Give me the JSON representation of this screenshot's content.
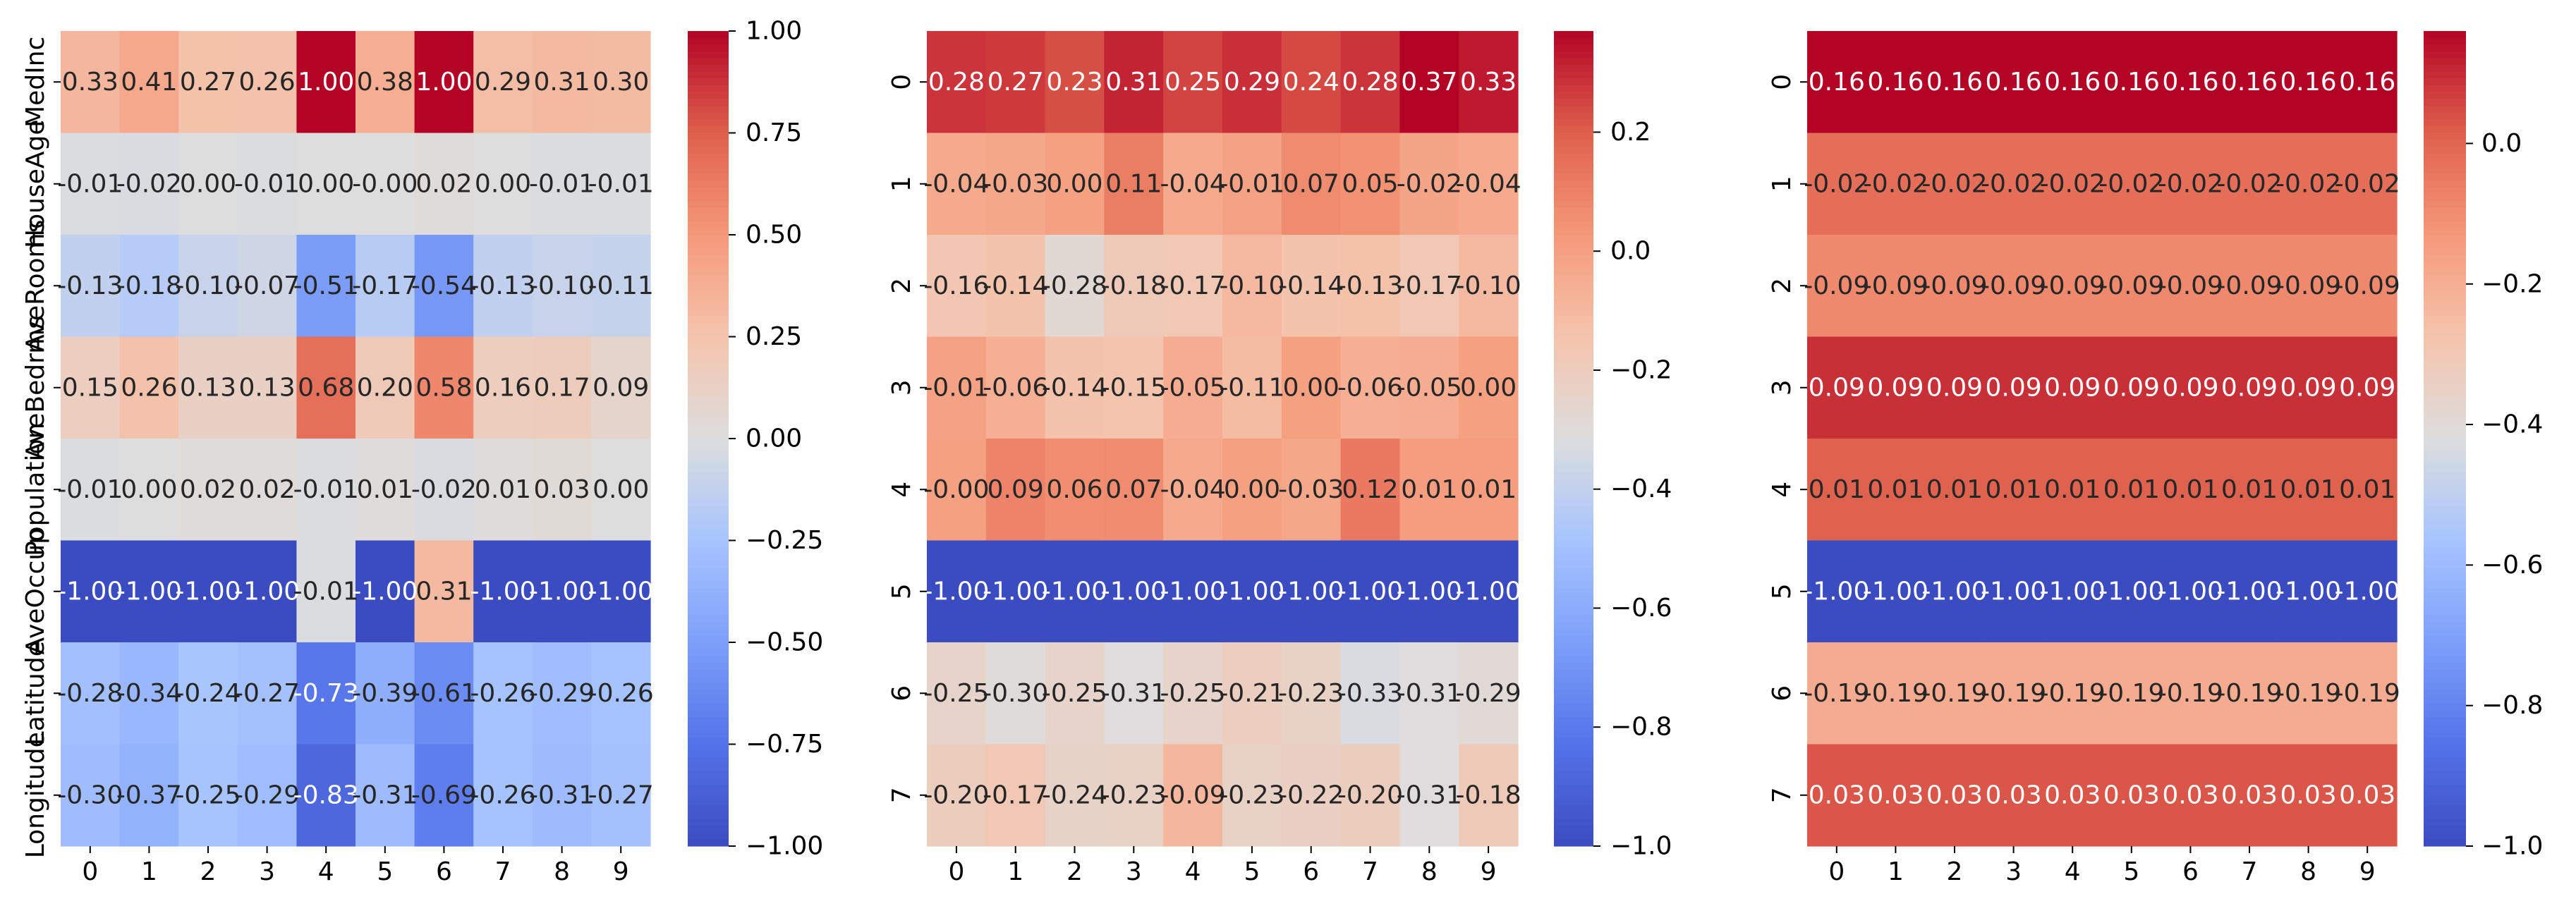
{
  "chart_data": [
    {
      "type": "heatmap",
      "x_tick_labels": [
        "0",
        "1",
        "2",
        "3",
        "4",
        "5",
        "6",
        "7",
        "8",
        "9"
      ],
      "y_tick_labels": [
        "MedInc",
        "HouseAge",
        "AveRooms",
        "AveBedrms",
        "Population",
        "AveOccup",
        "Latitude",
        "Longitude"
      ],
      "values": [
        [
          0.33,
          0.41,
          0.27,
          0.26,
          1.0,
          0.38,
          1.0,
          0.29,
          0.31,
          0.3
        ],
        [
          -0.01,
          -0.02,
          0.0,
          -0.01,
          0.0,
          -0.0,
          0.02,
          0.0,
          -0.01,
          -0.01
        ],
        [
          -0.13,
          -0.18,
          -0.1,
          -0.07,
          -0.51,
          -0.17,
          -0.54,
          -0.13,
          -0.1,
          -0.11
        ],
        [
          0.15,
          0.26,
          0.13,
          0.13,
          0.68,
          0.2,
          0.58,
          0.16,
          0.17,
          0.09
        ],
        [
          -0.01,
          0.0,
          0.02,
          0.02,
          -0.01,
          0.01,
          -0.02,
          0.01,
          0.03,
          0.0
        ],
        [
          -1.0,
          -1.0,
          -1.0,
          -1.0,
          -0.01,
          -1.0,
          0.31,
          -1.0,
          -1.0,
          -1.0
        ],
        [
          -0.28,
          -0.34,
          -0.24,
          -0.27,
          -0.73,
          -0.39,
          -0.61,
          -0.26,
          -0.29,
          -0.26
        ],
        [
          -0.3,
          -0.37,
          -0.25,
          -0.29,
          -0.83,
          -0.31,
          -0.69,
          -0.26,
          -0.31,
          -0.27
        ]
      ],
      "labels": [
        [
          "0.33",
          "0.41",
          "0.27",
          "0.26",
          "1.00",
          "0.38",
          "1.00",
          "0.29",
          "0.31",
          "0.30"
        ],
        [
          "-0.01",
          "-0.02",
          "0.00",
          "-0.01",
          "0.00",
          "-0.00",
          "0.02",
          "0.00",
          "-0.01",
          "-0.01"
        ],
        [
          "-0.13",
          "-0.18",
          "-0.10",
          "-0.07",
          "-0.51",
          "-0.17",
          "-0.54",
          "-0.13",
          "-0.10",
          "-0.11"
        ],
        [
          "0.15",
          "0.26",
          "0.13",
          "0.13",
          "0.68",
          "0.20",
          "0.58",
          "0.16",
          "0.17",
          "0.09"
        ],
        [
          "-0.01",
          "0.00",
          "0.02",
          "0.02",
          "-0.01",
          "0.01",
          "-0.02",
          "0.01",
          "0.03",
          "0.00"
        ],
        [
          "-1.00",
          "-1.00",
          "-1.00",
          "-1.00",
          "-0.01",
          "-1.00",
          "0.31",
          "-1.00",
          "-1.00",
          "-1.00"
        ],
        [
          "-0.28",
          "-0.34",
          "-0.24",
          "-0.27",
          "-0.73",
          "-0.39",
          "-0.61",
          "-0.26",
          "-0.29",
          "-0.26"
        ],
        [
          "-0.30",
          "-0.37",
          "-0.25",
          "-0.29",
          "-0.83",
          "-0.31",
          "-0.69",
          "-0.26",
          "-0.31",
          "-0.27"
        ]
      ],
      "color_range": [
        -1.0,
        1.0
      ],
      "colorbar_ticks": [
        1.0,
        0.75,
        0.5,
        0.25,
        0.0,
        -0.25,
        -0.5,
        -0.75,
        -1.0
      ],
      "colorbar_tick_labels": [
        "1.00",
        "0.75",
        "0.50",
        "0.25",
        "0.00",
        "−0.25",
        "−0.50",
        "−0.75",
        "−1.00"
      ],
      "colormap": "coolwarm",
      "y_labels_rotated": true
    },
    {
      "type": "heatmap",
      "x_tick_labels": [
        "0",
        "1",
        "2",
        "3",
        "4",
        "5",
        "6",
        "7",
        "8",
        "9"
      ],
      "y_tick_labels": [
        "0",
        "1",
        "2",
        "3",
        "4",
        "5",
        "6",
        "7"
      ],
      "values": [
        [
          0.28,
          0.27,
          0.23,
          0.31,
          0.25,
          0.29,
          0.24,
          0.28,
          0.37,
          0.33
        ],
        [
          -0.04,
          -0.03,
          0.0,
          0.11,
          -0.04,
          -0.01,
          0.07,
          0.05,
          -0.02,
          -0.04
        ],
        [
          -0.16,
          -0.14,
          -0.28,
          -0.18,
          -0.17,
          -0.1,
          -0.14,
          -0.13,
          -0.17,
          -0.1
        ],
        [
          -0.01,
          -0.06,
          -0.14,
          -0.15,
          -0.05,
          -0.11,
          0.0,
          -0.06,
          -0.05,
          0.0
        ],
        [
          0.0,
          0.09,
          0.06,
          0.07,
          -0.04,
          0.0,
          -0.03,
          0.12,
          0.01,
          0.01
        ],
        [
          -1.0,
          -1.0,
          -1.0,
          -1.0,
          -1.0,
          -1.0,
          -1.0,
          -1.0,
          -1.0,
          -1.0
        ],
        [
          -0.25,
          -0.3,
          -0.25,
          -0.31,
          -0.25,
          -0.21,
          -0.23,
          -0.33,
          -0.31,
          -0.29
        ],
        [
          -0.2,
          -0.17,
          -0.24,
          -0.23,
          -0.09,
          -0.23,
          -0.22,
          -0.2,
          -0.31,
          -0.18
        ]
      ],
      "labels": [
        [
          "0.28",
          "0.27",
          "0.23",
          "0.31",
          "0.25",
          "0.29",
          "0.24",
          "0.28",
          "0.37",
          "0.33"
        ],
        [
          "-0.04",
          "-0.03",
          "0.00",
          "0.11",
          "-0.04",
          "-0.01",
          "0.07",
          "0.05",
          "-0.02",
          "-0.04"
        ],
        [
          "-0.16",
          "-0.14",
          "-0.28",
          "-0.18",
          "-0.17",
          "-0.10",
          "-0.14",
          "-0.13",
          "-0.17",
          "-0.10"
        ],
        [
          "-0.01",
          "-0.06",
          "-0.14",
          "-0.15",
          "-0.05",
          "-0.11",
          "0.00",
          "-0.06",
          "-0.05",
          "0.00"
        ],
        [
          "-0.00",
          "0.09",
          "0.06",
          "0.07",
          "-0.04",
          "0.00",
          "-0.03",
          "0.12",
          "0.01",
          "0.01"
        ],
        [
          "-1.00",
          "-1.00",
          "-1.00",
          "-1.00",
          "-1.00",
          "-1.00",
          "-1.00",
          "-1.00",
          "-1.00",
          "-1.00"
        ],
        [
          "-0.25",
          "-0.30",
          "-0.25",
          "-0.31",
          "-0.25",
          "-0.21",
          "-0.23",
          "-0.33",
          "-0.31",
          "-0.29"
        ],
        [
          "-0.20",
          "-0.17",
          "-0.24",
          "-0.23",
          "-0.09",
          "-0.23",
          "-0.22",
          "-0.20",
          "-0.31",
          "-0.18"
        ]
      ],
      "color_range": [
        -1.0,
        0.37
      ],
      "colorbar_ticks": [
        0.2,
        0.0,
        -0.2,
        -0.4,
        -0.6,
        -0.8,
        -1.0
      ],
      "colorbar_tick_labels": [
        "0.2",
        "0.0",
        "−0.2",
        "−0.4",
        "−0.6",
        "−0.8",
        "−1.0"
      ],
      "colormap": "coolwarm",
      "y_labels_rotated": true
    },
    {
      "type": "heatmap",
      "x_tick_labels": [
        "0",
        "1",
        "2",
        "3",
        "4",
        "5",
        "6",
        "7",
        "8",
        "9"
      ],
      "y_tick_labels": [
        "0",
        "1",
        "2",
        "3",
        "4",
        "5",
        "6",
        "7"
      ],
      "values": [
        [
          0.16,
          0.16,
          0.16,
          0.16,
          0.16,
          0.16,
          0.16,
          0.16,
          0.16,
          0.16
        ],
        [
          -0.02,
          -0.02,
          -0.02,
          -0.02,
          -0.02,
          -0.02,
          -0.02,
          -0.02,
          -0.02,
          -0.02
        ],
        [
          -0.09,
          -0.09,
          -0.09,
          -0.09,
          -0.09,
          -0.09,
          -0.09,
          -0.09,
          -0.09,
          -0.09
        ],
        [
          0.09,
          0.09,
          0.09,
          0.09,
          0.09,
          0.09,
          0.09,
          0.09,
          0.09,
          0.09
        ],
        [
          0.01,
          0.01,
          0.01,
          0.01,
          0.01,
          0.01,
          0.01,
          0.01,
          0.01,
          0.01
        ],
        [
          -1.0,
          -1.0,
          -1.0,
          -1.0,
          -1.0,
          -1.0,
          -1.0,
          -1.0,
          -1.0,
          -1.0
        ],
        [
          -0.19,
          -0.19,
          -0.19,
          -0.19,
          -0.19,
          -0.19,
          -0.19,
          -0.19,
          -0.19,
          -0.19
        ],
        [
          0.03,
          0.03,
          0.03,
          0.03,
          0.03,
          0.03,
          0.03,
          0.03,
          0.03,
          0.03
        ]
      ],
      "labels": [
        [
          "0.16",
          "0.16",
          "0.16",
          "0.16",
          "0.16",
          "0.16",
          "0.16",
          "0.16",
          "0.16",
          "0.16"
        ],
        [
          "-0.02",
          "-0.02",
          "-0.02",
          "-0.02",
          "-0.02",
          "-0.02",
          "-0.02",
          "-0.02",
          "-0.02",
          "-0.02"
        ],
        [
          "-0.09",
          "-0.09",
          "-0.09",
          "-0.09",
          "-0.09",
          "-0.09",
          "-0.09",
          "-0.09",
          "-0.09",
          "-0.09"
        ],
        [
          "0.09",
          "0.09",
          "0.09",
          "0.09",
          "0.09",
          "0.09",
          "0.09",
          "0.09",
          "0.09",
          "0.09"
        ],
        [
          "0.01",
          "0.01",
          "0.01",
          "0.01",
          "0.01",
          "0.01",
          "0.01",
          "0.01",
          "0.01",
          "0.01"
        ],
        [
          "-1.00",
          "-1.00",
          "-1.00",
          "-1.00",
          "-1.00",
          "-1.00",
          "-1.00",
          "-1.00",
          "-1.00",
          "-1.00"
        ],
        [
          "-0.19",
          "-0.19",
          "-0.19",
          "-0.19",
          "-0.19",
          "-0.19",
          "-0.19",
          "-0.19",
          "-0.19",
          "-0.19"
        ],
        [
          "0.03",
          "0.03",
          "0.03",
          "0.03",
          "0.03",
          "0.03",
          "0.03",
          "0.03",
          "0.03",
          "0.03"
        ]
      ],
      "color_range": [
        -1.0,
        0.16
      ],
      "colorbar_ticks": [
        0.0,
        -0.2,
        -0.4,
        -0.6,
        -0.8,
        -1.0
      ],
      "colorbar_tick_labels": [
        "0.0",
        "−0.2",
        "−0.4",
        "−0.6",
        "−0.8",
        "−1.0"
      ],
      "colormap": "coolwarm",
      "y_labels_rotated": true
    }
  ]
}
